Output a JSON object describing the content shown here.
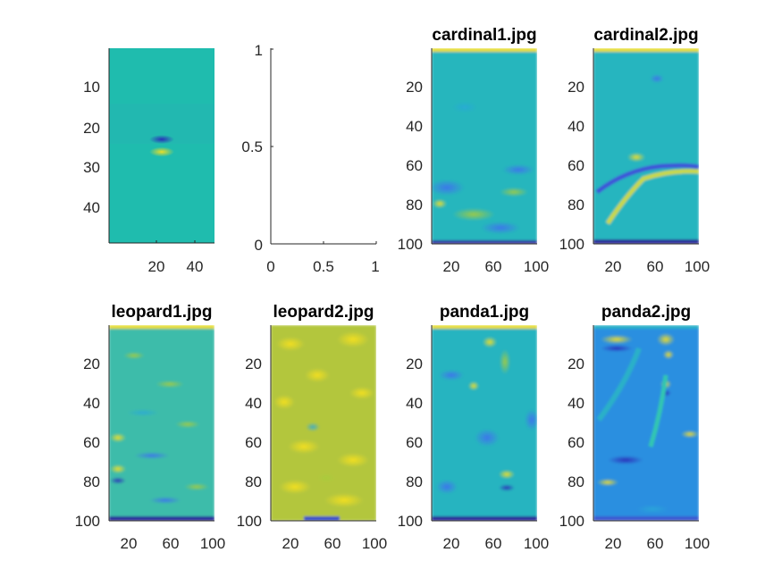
{
  "colors": {
    "tick_text": "#262626",
    "axis_line": "#262626",
    "colormap": "parula"
  },
  "chart_data": [
    {
      "type": "heatmap",
      "title": "",
      "xlabel": "",
      "ylabel": "",
      "xlim": [
        0.5,
        49.5
      ],
      "ylim": [
        0.5,
        49.5
      ],
      "y_reversed": true,
      "xticks": [
        "20",
        "40"
      ],
      "yticks": [
        "10",
        "20",
        "30",
        "40"
      ],
      "description_values": {
        "background": 0.5,
        "center_row_negative": 24,
        "center_row_positive": 26,
        "center_col": 25
      }
    },
    {
      "type": "line",
      "title": "",
      "xlabel": "",
      "ylabel": "",
      "xlim": [
        0,
        1
      ],
      "ylim": [
        0,
        1
      ],
      "xticks": [
        "0",
        "0.5",
        "1"
      ],
      "yticks": [
        "0",
        "0.5",
        "1"
      ],
      "series": []
    },
    {
      "type": "heatmap",
      "title": "cardinal1.jpg",
      "xlim": [
        0.5,
        100.5
      ],
      "ylim": [
        0.5,
        100.5
      ],
      "y_reversed": true,
      "xticks": [
        "20",
        "60",
        "100"
      ],
      "yticks": [
        "20",
        "40",
        "60",
        "80",
        "100"
      ]
    },
    {
      "type": "heatmap",
      "title": "cardinal2.jpg",
      "xlim": [
        0.5,
        100.5
      ],
      "ylim": [
        0.5,
        100.5
      ],
      "y_reversed": true,
      "xticks": [
        "20",
        "60",
        "100"
      ],
      "yticks": [
        "20",
        "40",
        "60",
        "80",
        "100"
      ]
    },
    {
      "type": "heatmap",
      "title": "leopard1.jpg",
      "xlim": [
        0.5,
        100.5
      ],
      "ylim": [
        0.5,
        100.5
      ],
      "y_reversed": true,
      "xticks": [
        "20",
        "60",
        "100"
      ],
      "yticks": [
        "20",
        "40",
        "60",
        "80",
        "100"
      ]
    },
    {
      "type": "heatmap",
      "title": "leopard2.jpg",
      "xlim": [
        0.5,
        100.5
      ],
      "ylim": [
        0.5,
        100.5
      ],
      "y_reversed": true,
      "xticks": [
        "20",
        "60",
        "100"
      ],
      "yticks": [
        "20",
        "40",
        "60",
        "80",
        "100"
      ]
    },
    {
      "type": "heatmap",
      "title": "panda1.jpg",
      "xlim": [
        0.5,
        100.5
      ],
      "ylim": [
        0.5,
        100.5
      ],
      "y_reversed": true,
      "xticks": [
        "20",
        "60",
        "100"
      ],
      "yticks": [
        "20",
        "40",
        "60",
        "80",
        "100"
      ]
    },
    {
      "type": "heatmap",
      "title": "panda2.jpg",
      "xlim": [
        0.5,
        100.5
      ],
      "ylim": [
        0.5,
        100.5
      ],
      "y_reversed": true,
      "xticks": [
        "20",
        "60",
        "100"
      ],
      "yticks": [
        "20",
        "40",
        "60",
        "80",
        "100"
      ]
    }
  ]
}
